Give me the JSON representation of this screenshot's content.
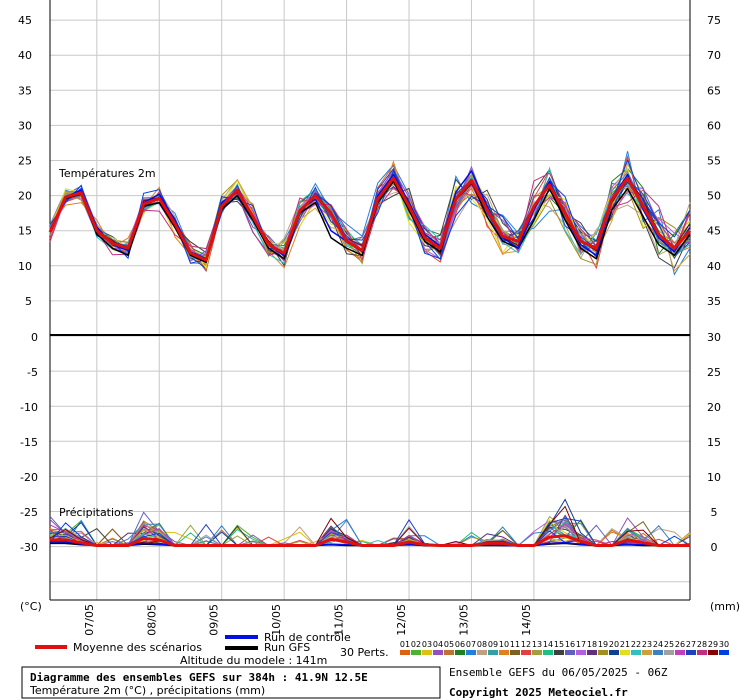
{
  "header_title": "Diagramme des ensembles GEFS sur 384h : 41.9N 12.5E",
  "header_subtitle": "Température 2m (°C) , précipitations (mm)",
  "altitude": "Altitude du modele : 141m",
  "run_info": "Ensemble GEFS du 06/05/2025 - 06Z",
  "copyright": "Copyright 2025 Meteociel.fr",
  "legend": {
    "mean": "Moyenne des scénarios",
    "control": "Run de contrôle",
    "gfs": "Run GFS",
    "perts": "30 Perts.",
    "pert_labels": [
      "01",
      "02",
      "03",
      "04",
      "05",
      "06",
      "07",
      "08",
      "09",
      "10",
      "11",
      "12",
      "13",
      "14",
      "15",
      "16",
      "17",
      "18",
      "19",
      "20",
      "21",
      "22",
      "23",
      "24",
      "25",
      "26",
      "27",
      "28",
      "29",
      "30"
    ],
    "pert_colors": [
      "#e06010",
      "#50b030",
      "#e0c010",
      "#9050c0",
      "#c07030",
      "#208020",
      "#2080e0",
      "#c0a080",
      "#30a0a0",
      "#e08020",
      "#806020",
      "#e04040",
      "#a0a040",
      "#20c080",
      "#404040",
      "#6060c0",
      "#b060e0",
      "#603080",
      "#a09020",
      "#104090",
      "#e0e020",
      "#30c0c0",
      "#d0a040",
      "#4080c0",
      "#a0a0a0",
      "#c040c0",
      "#2040c0",
      "#c03080",
      "#800000",
      "#0040e0"
    ]
  },
  "chart_data": {
    "type": "line",
    "x_unit": "6h steps from 06/05/2025 06Z",
    "date_ticks": [
      "07/05",
      "08/05",
      "09/05",
      "10/05",
      "11/05",
      "12/05",
      "13/05",
      "14/05"
    ],
    "temperature": {
      "title": "Températures 2m",
      "unit": "(°C)",
      "left_ticks": [
        5,
        10,
        15,
        20,
        25,
        30,
        35,
        40,
        45
      ],
      "right_ticks": [
        35,
        40,
        45,
        50,
        55,
        60,
        65,
        70,
        75
      ],
      "mean": [
        14.8,
        19.8,
        20.4,
        15,
        13.2,
        12.5,
        18.8,
        19.6,
        16,
        11.8,
        10.8,
        18.5,
        20.8,
        17,
        13,
        11.8,
        17.8,
        20,
        17.5,
        13.5,
        12.2,
        19.5,
        22.5,
        18.5,
        14,
        12.5,
        19.5,
        22.2,
        18,
        14.2,
        13.5,
        18.5,
        21.5,
        17.5,
        13.5,
        12.5,
        19.5,
        22.5,
        18.5,
        14.5,
        12.5,
        15
      ],
      "control": [
        14.8,
        19.8,
        20.8,
        15.5,
        13,
        12.2,
        19,
        20.2,
        16.5,
        12,
        11,
        19,
        20.5,
        17,
        13,
        11.5,
        18,
        19.5,
        15,
        13.5,
        12,
        20,
        23,
        19,
        14.5,
        12.8,
        20.5,
        23.5,
        18.5,
        14,
        12.5,
        18,
        22,
        17.5,
        13,
        11.5,
        19.5,
        23,
        18,
        14,
        12,
        15.5
      ],
      "gfs": [
        14.8,
        19.6,
        20.2,
        14.5,
        12.5,
        11.5,
        18.5,
        19,
        15.5,
        11.5,
        10.5,
        18,
        20,
        16.5,
        12.5,
        11,
        17.5,
        19,
        14,
        12.5,
        11.5,
        19,
        22,
        18,
        13.5,
        12,
        19.5,
        22,
        17,
        13.5,
        12.5,
        16.5,
        21,
        16.5,
        12.5,
        11,
        18,
        21,
        17,
        13,
        11.5,
        14.5
      ]
    },
    "precipitation": {
      "title": "Précipitations",
      "unit": "(mm)",
      "left_ticks": [
        -30,
        -25,
        -20,
        -15,
        -10,
        -5,
        0
      ],
      "right_ticks": [
        0,
        5,
        10,
        15,
        20,
        25,
        30
      ],
      "mean": [
        0.8,
        0.8,
        0.4,
        0,
        0,
        0,
        1,
        0.8,
        0,
        0,
        0,
        0,
        0,
        0,
        0,
        0,
        0,
        0,
        0.9,
        0.5,
        0,
        0,
        0,
        0.5,
        0.1,
        0,
        0,
        0,
        0.3,
        0.3,
        0,
        0,
        1.2,
        1.4,
        0.6,
        0,
        0,
        0.8,
        0.4,
        0,
        0,
        0
      ],
      "control": [
        0.5,
        0.5,
        0.2,
        0,
        0,
        0,
        0.3,
        0.2,
        0,
        0,
        0,
        0,
        0,
        0,
        0,
        0,
        0,
        0,
        0.2,
        0.1,
        0,
        0,
        0,
        0.2,
        0,
        0,
        0,
        0,
        0.1,
        0,
        0,
        0,
        0.3,
        0.4,
        0.2,
        0,
        0,
        0.2,
        0.1,
        0,
        0,
        0
      ],
      "gfs": [
        0.3,
        0.3,
        0.1,
        0,
        0,
        0,
        0.2,
        0.1,
        0,
        0,
        0,
        0,
        0,
        0,
        0,
        0,
        0,
        0,
        0.1,
        0,
        0,
        0,
        0,
        0.1,
        0,
        0,
        0,
        0,
        0,
        0,
        0,
        0,
        0.2,
        0.3,
        0.1,
        0,
        0,
        0.1,
        0,
        0,
        0,
        0
      ]
    }
  }
}
